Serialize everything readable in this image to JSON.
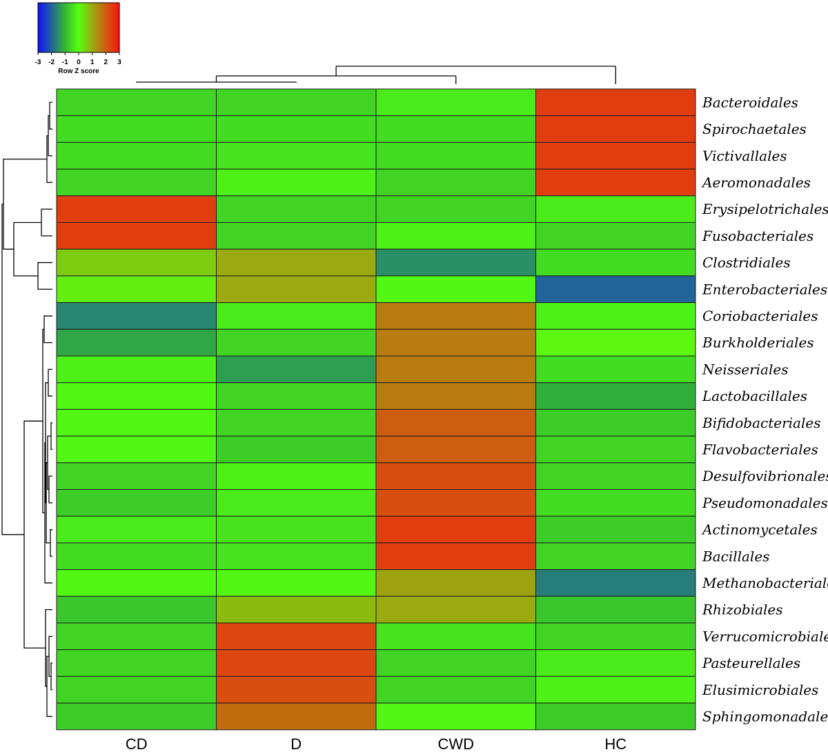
{
  "chart_data": {
    "type": "heatmap",
    "columns": [
      "CD",
      "D",
      "CWD",
      "HC"
    ],
    "rows": [
      "Bacteroidales",
      "Spirochaetales",
      "Victivallales",
      "Aeromonadales",
      "Erysipelotrichales",
      "Fusobacteriales",
      "Clostridiales",
      "Enterobacteriales",
      "Coriobacteriales",
      "Burkholderiales",
      "Neisseriales",
      "Lactobacillales",
      "Bifidobacteriales",
      "Flavobacteriales",
      "Desulfovibrionales",
      "Pseudomonadales",
      "Actinomycetales",
      "Bacillales",
      "Methanobacteriales",
      "Rhizobiales",
      "Verrucomicrobiales",
      "Pasteurellales",
      "Elusimicrobiales",
      "Sphingomonadales"
    ],
    "values": [
      [
        -0.6,
        -0.6,
        -0.3,
        2.4
      ],
      [
        -0.5,
        -0.5,
        -0.5,
        2.4
      ],
      [
        -0.5,
        -0.4,
        -0.5,
        2.4
      ],
      [
        -0.6,
        -0.2,
        -0.6,
        2.4
      ],
      [
        2.4,
        -0.6,
        -0.6,
        -0.3
      ],
      [
        2.4,
        -0.6,
        -0.2,
        -0.6
      ],
      [
        0.6,
        1.0,
        -1.5,
        -0.5
      ],
      [
        0.2,
        1.0,
        -0.1,
        -2.0
      ],
      [
        -1.6,
        -0.3,
        1.6,
        -0.2
      ],
      [
        -1.2,
        -0.6,
        1.6,
        0.1
      ],
      [
        -0.2,
        -1.3,
        1.6,
        -0.5
      ],
      [
        -0.1,
        -0.6,
        1.6,
        -1.1
      ],
      [
        -0.1,
        -0.6,
        2.0,
        -0.7
      ],
      [
        -0.1,
        -0.7,
        2.0,
        -0.6
      ],
      [
        -0.6,
        -0.2,
        2.2,
        -0.6
      ],
      [
        -0.7,
        -0.3,
        2.2,
        -0.5
      ],
      [
        -0.3,
        -0.4,
        2.4,
        -0.7
      ],
      [
        -0.5,
        -0.4,
        2.4,
        -0.6
      ],
      [
        -0.1,
        -0.1,
        1.1,
        -1.7
      ],
      [
        -0.8,
        0.8,
        1.0,
        -0.8
      ],
      [
        -0.6,
        2.3,
        -0.4,
        -0.6
      ],
      [
        -0.6,
        2.3,
        -0.6,
        -0.3
      ],
      [
        -0.6,
        2.2,
        -0.6,
        -0.2
      ],
      [
        -0.7,
        1.8,
        -0.1,
        -0.7
      ]
    ],
    "color_scale": {
      "title": "Row Z score",
      "ticks": [
        -3,
        -2,
        -1,
        0,
        1,
        2,
        3
      ],
      "stops": [
        {
          "value": -3,
          "color": "#1010ff"
        },
        {
          "value": -1,
          "color": "#33b833"
        },
        {
          "value": 0,
          "color": "#55ff10"
        },
        {
          "value": 1,
          "color": "#9aaa10"
        },
        {
          "value": 3,
          "color": "#ff1010"
        }
      ]
    },
    "row_dendrogram": true,
    "column_dendrogram": true
  }
}
